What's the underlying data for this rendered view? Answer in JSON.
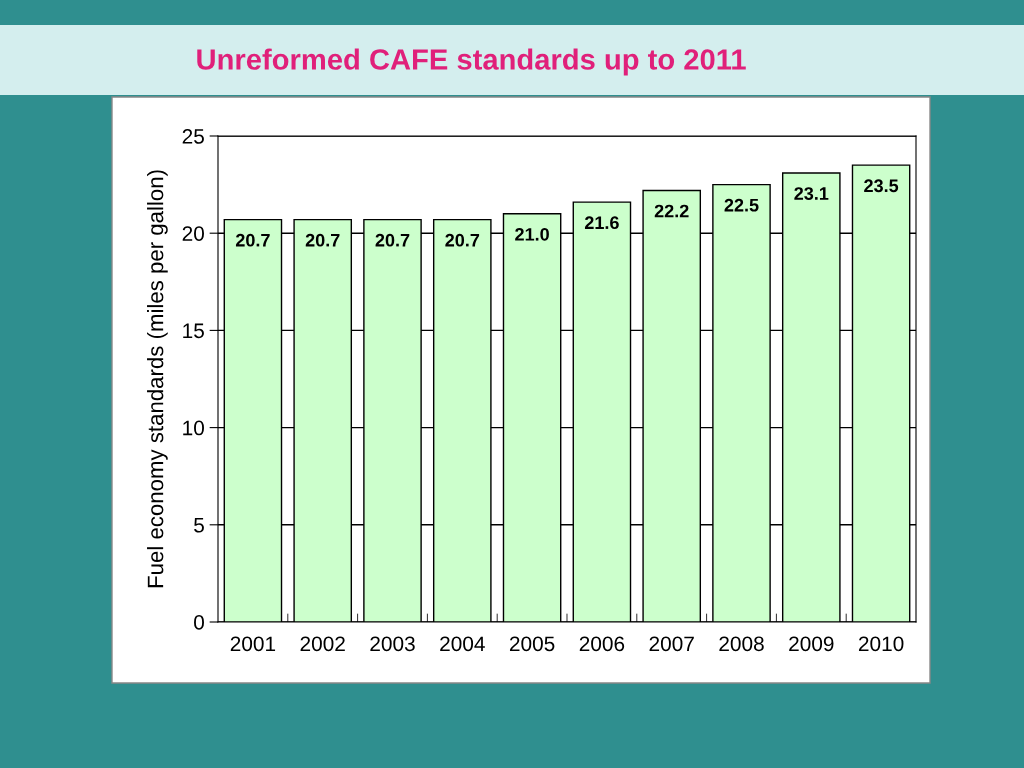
{
  "chart_data": {
    "type": "bar",
    "title": "Unreformed CAFE standards up to 2011",
    "ylabel": "Fuel economy standards (miles per gallon)",
    "categories": [
      "2001",
      "2002",
      "2003",
      "2004",
      "2005",
      "2006",
      "2007",
      "2008",
      "2009",
      "2010"
    ],
    "values": [
      20.7,
      20.7,
      20.7,
      20.7,
      21.0,
      21.6,
      22.2,
      22.5,
      23.1,
      23.5
    ],
    "color": "#ccffcc",
    "ylim": [
      0,
      25
    ],
    "yticks": [
      0,
      5,
      10,
      15,
      20,
      25
    ],
    "value_labels": [
      "20.7",
      "20.7",
      "20.7",
      "20.7",
      "21.0",
      "21.6",
      "22.2",
      "22.5",
      "23.1",
      "23.5"
    ],
    "grid": "y"
  }
}
